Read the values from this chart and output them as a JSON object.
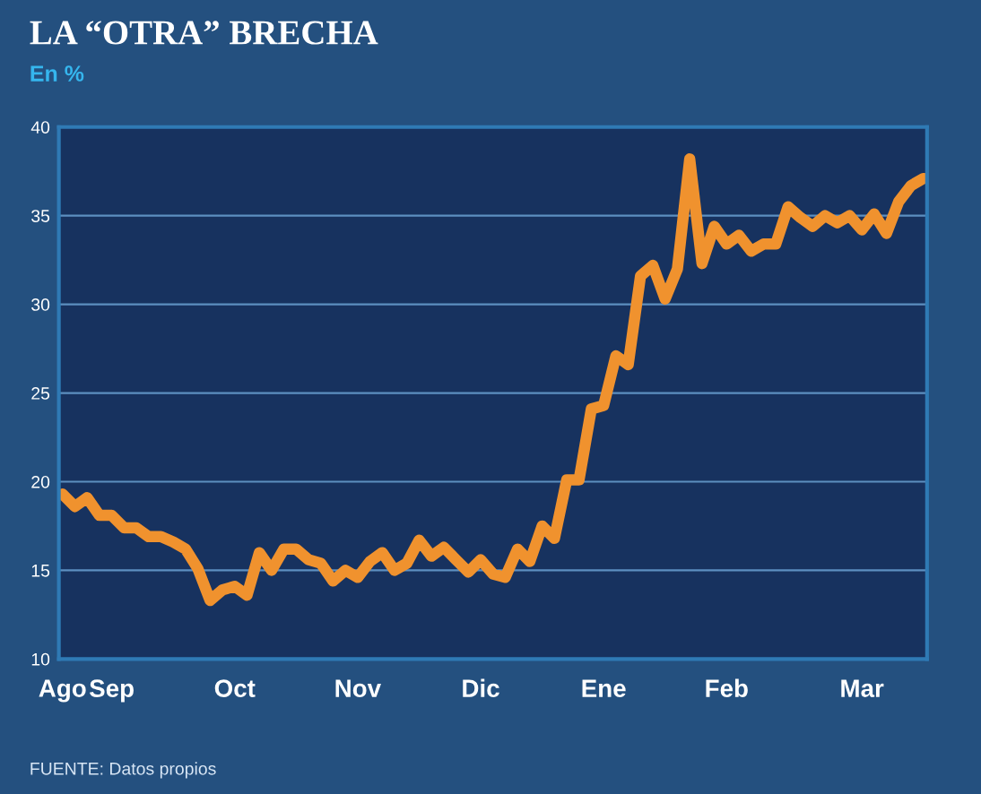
{
  "chart_data": {
    "type": "line",
    "title": "LA “OTRA” BRECHA",
    "subtitle": "En %",
    "annotations": [
      "FUENTE: Datos propios"
    ],
    "categories": [
      "Ago",
      null,
      null,
      null,
      "Sep",
      null,
      null,
      null,
      null,
      null,
      null,
      null,
      null,
      null,
      "Oct",
      null,
      null,
      null,
      null,
      null,
      null,
      null,
      null,
      null,
      "Nov",
      null,
      null,
      null,
      null,
      null,
      null,
      null,
      null,
      null,
      "Dic",
      null,
      null,
      null,
      null,
      null,
      null,
      null,
      null,
      null,
      "Ene",
      null,
      null,
      null,
      null,
      null,
      null,
      null,
      null,
      null,
      "Feb",
      null,
      null,
      null,
      null,
      null,
      null,
      null,
      null,
      null,
      null,
      "Mar",
      null,
      null,
      null,
      null,
      null
    ],
    "series": [
      {
        "color": "#f0922e",
        "values": [
          19.3,
          18.6,
          19.1,
          18.1,
          18.1,
          17.4,
          17.4,
          16.9,
          16.9,
          16.6,
          16.2,
          15.1,
          13.3,
          13.9,
          14.1,
          13.6,
          16.0,
          15.0,
          16.2,
          16.2,
          15.6,
          15.4,
          14.4,
          15.0,
          14.6,
          15.5,
          16.0,
          15.0,
          15.4,
          16.7,
          15.8,
          16.3,
          15.6,
          14.9,
          15.6,
          14.8,
          14.6,
          16.2,
          15.5,
          17.5,
          16.8,
          20.1,
          20.1,
          24.1,
          24.3,
          27.1,
          26.6,
          31.6,
          32.2,
          30.3,
          32.0,
          38.2,
          32.3,
          34.4,
          33.4,
          33.9,
          33.0,
          33.4,
          33.4,
          35.5,
          34.9,
          34.4,
          35.0,
          34.6,
          35.0,
          34.2,
          35.1,
          34.0,
          35.8,
          36.7,
          37.1
        ]
      }
    ],
    "ylim": [
      10,
      40
    ],
    "yticks": [
      10,
      15,
      20,
      25,
      30,
      35,
      40
    ],
    "grid": "y",
    "marker": "none",
    "line_style": "solid"
  }
}
